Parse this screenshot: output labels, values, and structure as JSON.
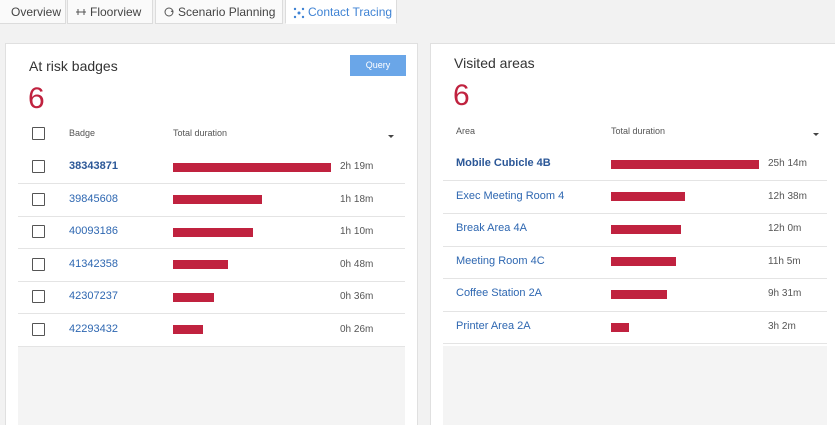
{
  "tabs": [
    {
      "label": "Overview",
      "active": false
    },
    {
      "label": "Floorview",
      "active": false
    },
    {
      "label": "Scenario Planning",
      "active": false
    },
    {
      "label": "Contact Tracing",
      "active": true
    }
  ],
  "badges_panel": {
    "title": "At risk badges",
    "count": 6,
    "button": "Query",
    "columns": [
      "Badge",
      "Total duration"
    ],
    "rows": [
      {
        "name": "38343871",
        "duration": "2h 19m",
        "minutes": 139
      },
      {
        "name": "39845608",
        "duration": "1h 18m",
        "minutes": 78
      },
      {
        "name": "40093186",
        "duration": "1h 10m",
        "minutes": 70
      },
      {
        "name": "41342358",
        "duration": "0h 48m",
        "minutes": 48
      },
      {
        "name": "42307237",
        "duration": "0h 36m",
        "minutes": 36
      },
      {
        "name": "42293432",
        "duration": "0h 26m",
        "minutes": 26
      }
    ]
  },
  "areas_panel": {
    "title": "Visited areas",
    "count": 6,
    "columns": [
      "Area",
      "Total duration"
    ],
    "rows": [
      {
        "name": "Mobile Cubicle 4B",
        "duration": "25h 14m",
        "minutes": 1514
      },
      {
        "name": "Exec Meeting Room 4",
        "duration": "12h 38m",
        "minutes": 758
      },
      {
        "name": "Break Area 4A",
        "duration": "12h 0m",
        "minutes": 720
      },
      {
        "name": "Meeting Room 4C",
        "duration": "11h 5m",
        "minutes": 665
      },
      {
        "name": "Coffee Station 2A",
        "duration": "9h 31m",
        "minutes": 571
      },
      {
        "name": "Printer Area 2A",
        "duration": "3h 2m",
        "minutes": 182
      }
    ]
  }
}
